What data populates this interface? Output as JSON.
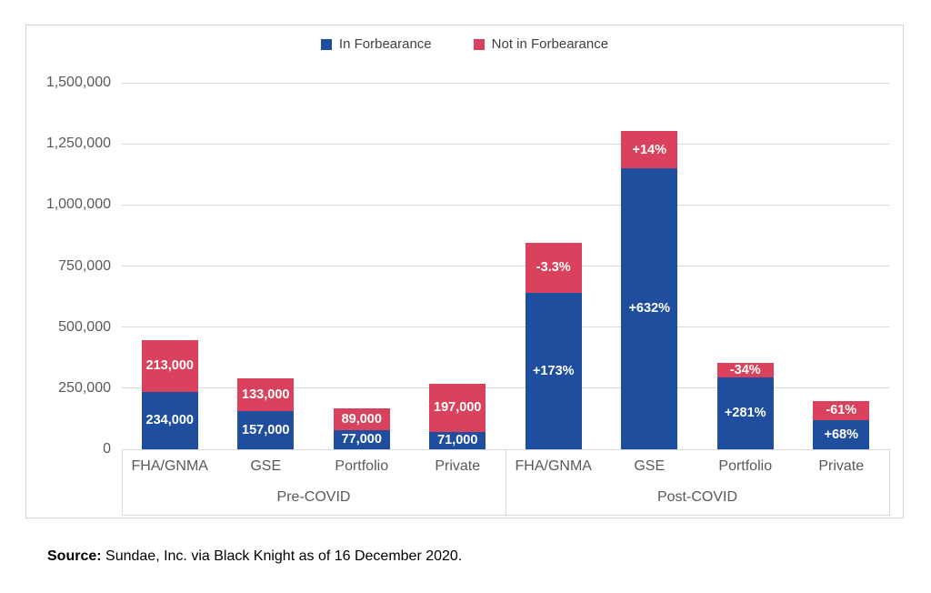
{
  "chart_data": {
    "type": "bar",
    "stacked": true,
    "title": "",
    "legend_position": "top",
    "grid": true,
    "legend_items": [
      {
        "label": "In Forbearance",
        "color": "#1F4E9F"
      },
      {
        "label": "Not in Forbearance",
        "color": "#D9415C"
      }
    ],
    "y_axis": {
      "min": 0,
      "max": 1500000,
      "ticks": [
        {
          "value": 0,
          "label": "0"
        },
        {
          "value": 250000,
          "label": "250,000"
        },
        {
          "value": 500000,
          "label": "500,000"
        },
        {
          "value": 750000,
          "label": "750,000"
        },
        {
          "value": 1000000,
          "label": "1,000,000"
        },
        {
          "value": 1250000,
          "label": "1,250,000"
        },
        {
          "value": 1500000,
          "label": "1,500,000"
        }
      ]
    },
    "groups": [
      {
        "label": "Pre-COVID",
        "bars": [
          {
            "category": "FHA/GNMA",
            "segments": [
              {
                "series": "In Forbearance",
                "value": 234000,
                "label": "234,000"
              },
              {
                "series": "Not in Forbearance",
                "value": 213000,
                "label": "213,000"
              }
            ]
          },
          {
            "category": "GSE",
            "segments": [
              {
                "series": "In Forbearance",
                "value": 157000,
                "label": "157,000"
              },
              {
                "series": "Not in Forbearance",
                "value": 133000,
                "label": "133,000"
              }
            ]
          },
          {
            "category": "Portfolio",
            "segments": [
              {
                "series": "In Forbearance",
                "value": 77000,
                "label": "77,000"
              },
              {
                "series": "Not in Forbearance",
                "value": 89000,
                "label": "89,000"
              }
            ]
          },
          {
            "category": "Private",
            "segments": [
              {
                "series": "In Forbearance",
                "value": 71000,
                "label": "71,000"
              },
              {
                "series": "Not in Forbearance",
                "value": 197000,
                "label": "197,000"
              }
            ]
          }
        ]
      },
      {
        "label": "Post-COVID",
        "bars": [
          {
            "category": "FHA/GNMA",
            "segments": [
              {
                "series": "In Forbearance",
                "value": 639000,
                "label": "+173%"
              },
              {
                "series": "Not in Forbearance",
                "value": 206000,
                "label": "-3.3%"
              }
            ]
          },
          {
            "category": "GSE",
            "segments": [
              {
                "series": "In Forbearance",
                "value": 1149000,
                "label": "+632%"
              },
              {
                "series": "Not in Forbearance",
                "value": 152000,
                "label": "+14%"
              }
            ]
          },
          {
            "category": "Portfolio",
            "segments": [
              {
                "series": "In Forbearance",
                "value": 293000,
                "label": "+281%"
              },
              {
                "series": "Not in Forbearance",
                "value": 59000,
                "label": "-34%"
              }
            ]
          },
          {
            "category": "Private",
            "segments": [
              {
                "series": "In Forbearance",
                "value": 119000,
                "label": "+68%"
              },
              {
                "series": "Not in Forbearance",
                "value": 77000,
                "label": "-61%"
              }
            ]
          }
        ]
      }
    ]
  },
  "source": {
    "prefix": "Source:",
    "text": " Sundae, Inc. via Black Knight as of 16 December 2020."
  }
}
